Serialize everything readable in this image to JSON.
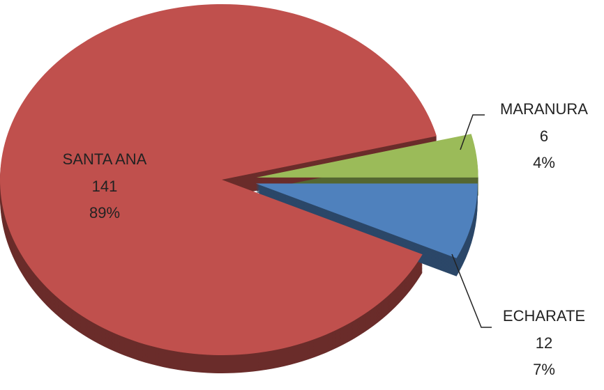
{
  "chart_data": {
    "type": "pie",
    "categories": [
      "SANTA ANA",
      "MARANURA",
      "ECHARATE"
    ],
    "values": [
      89,
      4,
      7
    ],
    "value_labels": [
      "89%",
      "4%",
      "7%"
    ],
    "counts": [
      141,
      6,
      12
    ],
    "colors": [
      "#c0504d",
      "#9bbb59",
      "#4f81bd"
    ]
  }
}
